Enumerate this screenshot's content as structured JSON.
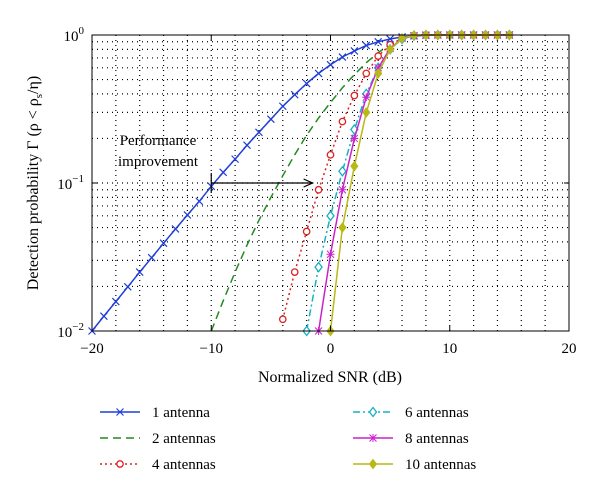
{
  "chart_data": {
    "type": "line",
    "xlabel": "Normalized SNR (dB)",
    "ylabel": "Detection probability Γ (ρ < ρ",
    "ylabel_sub": "s",
    "ylabel_tail": "/η)",
    "xlim": [
      -20,
      20
    ],
    "ylim": [
      0.01,
      1
    ],
    "yscale": "log",
    "grid": true,
    "x_ticks": [
      -20,
      -10,
      0,
      10,
      20
    ],
    "x_tick_labels": [
      "−20",
      "−10",
      "0",
      "10",
      "20"
    ],
    "y_ticks": [
      0.01,
      0.1,
      1
    ],
    "y_tick_labels": [
      {
        "base": "10",
        "exp": "−2"
      },
      {
        "base": "10",
        "exp": "−1"
      },
      {
        "base": "10",
        "exp": "0"
      }
    ],
    "legend_position": "below-plot",
    "annotation": {
      "lines": [
        "Performance",
        "improvement"
      ],
      "arrow_from": [
        -10,
        0.1
      ],
      "arrow_to": [
        -1.5,
        0.1
      ]
    },
    "series": [
      {
        "name": "1 antenna",
        "color": "#1f3fd6",
        "dash": "",
        "marker": "x",
        "x": [
          -20,
          -19,
          -18,
          -17,
          -16,
          -15,
          -14,
          -13,
          -12,
          -11,
          -10,
          -9,
          -8,
          -7,
          -6,
          -5,
          -4,
          -3,
          -2,
          -1,
          0,
          1,
          2,
          3,
          4,
          5,
          6,
          7,
          8,
          9,
          10,
          11,
          12,
          13,
          14,
          15
        ],
        "y": [
          0.01,
          0.0126,
          0.0158,
          0.0199,
          0.025,
          0.0313,
          0.0392,
          0.0489,
          0.0608,
          0.0752,
          0.095,
          0.118,
          0.145,
          0.18,
          0.22,
          0.27,
          0.33,
          0.395,
          0.47,
          0.55,
          0.63,
          0.71,
          0.78,
          0.85,
          0.9,
          0.94,
          0.97,
          0.985,
          0.995,
          1,
          1,
          1,
          1,
          1,
          1,
          1
        ]
      },
      {
        "name": "2 antennas",
        "color": "#228b22",
        "dash": "8,5",
        "marker": "none",
        "x": [
          -10,
          -9,
          -8,
          -7,
          -6,
          -5,
          -4,
          -3,
          -2,
          -1,
          0,
          1,
          2,
          3,
          4,
          5,
          6,
          7,
          8,
          9,
          10,
          11,
          12,
          13,
          14,
          15
        ],
        "y": [
          0.01,
          0.016,
          0.025,
          0.038,
          0.056,
          0.08,
          0.112,
          0.155,
          0.21,
          0.275,
          0.35,
          0.44,
          0.54,
          0.65,
          0.76,
          0.86,
          0.93,
          0.98,
          0.995,
          1,
          1,
          1,
          1,
          1,
          1,
          1
        ]
      },
      {
        "name": "4 antennas",
        "color": "#dd2222",
        "dash": "2,3",
        "marker": "o",
        "x": [
          -4,
          -3,
          -2,
          -1,
          0,
          1,
          2,
          3,
          4,
          5,
          6,
          7,
          8,
          9,
          10,
          11,
          12,
          13,
          14,
          15
        ],
        "y": [
          0.012,
          0.025,
          0.047,
          0.09,
          0.155,
          0.26,
          0.39,
          0.55,
          0.72,
          0.86,
          0.95,
          0.99,
          1,
          1,
          1,
          1,
          1,
          1,
          1,
          1
        ]
      },
      {
        "name": "6 antennas",
        "color": "#17b0c0",
        "dash": "7,3,2,3",
        "marker": "diamond",
        "x": [
          -2,
          -1,
          0,
          1,
          2,
          3,
          4,
          5,
          6,
          7,
          8,
          9,
          10,
          11,
          12,
          13,
          14,
          15
        ],
        "y": [
          0.01,
          0.027,
          0.06,
          0.12,
          0.23,
          0.4,
          0.6,
          0.8,
          0.94,
          0.99,
          1,
          1,
          1,
          1,
          1,
          1,
          1,
          1
        ]
      },
      {
        "name": "8 antennas",
        "color": "#cc22cc",
        "dash": "",
        "marker": "star",
        "x": [
          -1,
          0,
          1,
          2,
          3,
          4,
          5,
          6,
          7,
          8,
          9,
          10,
          11,
          12,
          13,
          14,
          15
        ],
        "y": [
          0.01,
          0.033,
          0.09,
          0.2,
          0.38,
          0.6,
          0.81,
          0.95,
          0.99,
          1,
          1,
          1,
          1,
          1,
          1,
          1,
          1
        ]
      },
      {
        "name": "10 antennas",
        "color": "#b8b817",
        "dash": "",
        "marker": "diamond-filled",
        "x": [
          0,
          1,
          2,
          3,
          4,
          5,
          6,
          7,
          8,
          9,
          10,
          11,
          12,
          13,
          14,
          15
        ],
        "y": [
          0.01,
          0.05,
          0.13,
          0.3,
          0.55,
          0.8,
          0.95,
          0.995,
          1,
          1,
          1,
          1,
          1,
          1,
          1,
          1
        ]
      }
    ]
  }
}
